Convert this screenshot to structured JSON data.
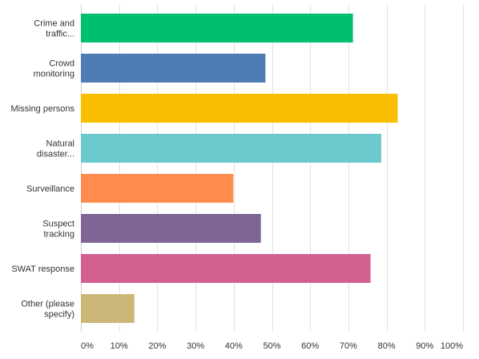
{
  "chart_data": {
    "type": "bar",
    "orientation": "horizontal",
    "categories": [
      [
        "Crime and",
        "traffic..."
      ],
      [
        "Crowd",
        "monitoring"
      ],
      [
        "Missing persons"
      ],
      [
        "Natural",
        "disaster..."
      ],
      [
        "Surveillance"
      ],
      [
        "Suspect",
        "tracking"
      ],
      [
        "SWAT response"
      ],
      [
        "Other (please",
        "specify)"
      ]
    ],
    "values": [
      71.2,
      48.3,
      82.9,
      78.6,
      39.9,
      47.1,
      75.8,
      14.0
    ],
    "value_unit": "%",
    "xlim": [
      0,
      100
    ],
    "x_ticks": [
      "0%",
      "10%",
      "20%",
      "30%",
      "40%",
      "50%",
      "60%",
      "70%",
      "80%",
      "90%",
      "100%"
    ],
    "grid": true,
    "colors": [
      "#00bf6f",
      "#507cb6",
      "#f9be00",
      "#6bc8cd",
      "#ff8b4f",
      "#7f6496",
      "#d25f90",
      "#cbb879"
    ],
    "title": "",
    "xlabel": "",
    "ylabel": ""
  }
}
